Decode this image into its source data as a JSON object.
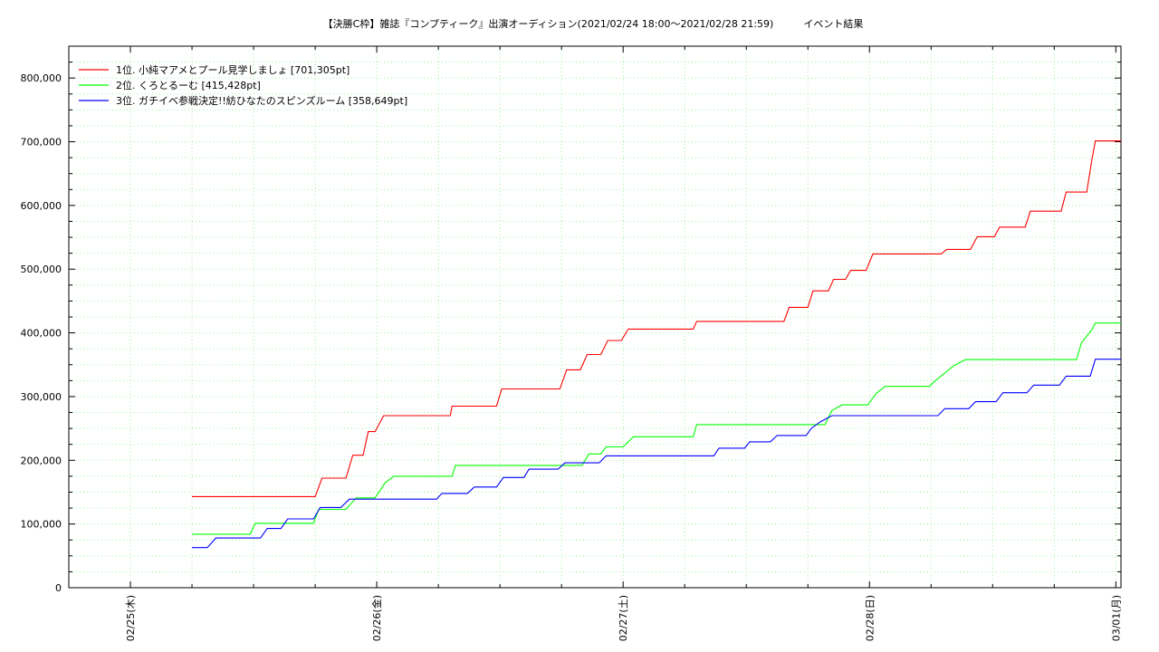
{
  "chart_data": {
    "type": "line",
    "title": "【決勝C枠】雑誌『コンプティーク』出演オーディション(2021/02/24 18:00〜2021/02/28 21:59)　　　イベント結果",
    "xlabel": "",
    "ylabel": "",
    "xlim": [
      "2021-02-24 18:00",
      "2021-03-01 00:30"
    ],
    "ylim": [
      0,
      850000
    ],
    "grid": true,
    "legend_position": "top-left",
    "x_tick_labels": [
      {
        "x": "2021-02-25 00:00",
        "label": "02/25(木)"
      },
      {
        "x": "2021-02-26 00:00",
        "label": "02/26(金)"
      },
      {
        "x": "2021-02-27 00:00",
        "label": "02/27(土)"
      },
      {
        "x": "2021-02-28 00:00",
        "label": "02/28(日)"
      },
      {
        "x": "2021-03-01 00:00",
        "label": "03/01(月)"
      }
    ],
    "y_tick_labels": [
      {
        "y": 0,
        "label": "0"
      },
      {
        "y": 100000,
        "label": "100,000"
      },
      {
        "y": 200000,
        "label": "200,000"
      },
      {
        "y": 300000,
        "label": "300,000"
      },
      {
        "y": 400000,
        "label": "400,000"
      },
      {
        "y": 500000,
        "label": "500,000"
      },
      {
        "y": 600000,
        "label": "600,000"
      },
      {
        "y": 700000,
        "label": "700,000"
      },
      {
        "y": 800000,
        "label": "800,000"
      }
    ],
    "series": [
      {
        "name": "1位. 小純マアメとプール見学しましょ [701,305pt]",
        "color": "#ff0000",
        "points": [
          [
            "2021-02-25 06:00",
            143000
          ],
          [
            "2021-02-25 18:00",
            143000
          ],
          [
            "2021-02-25 18:40",
            172000
          ],
          [
            "2021-02-25 21:00",
            172000
          ],
          [
            "2021-02-25 21:40",
            208000
          ],
          [
            "2021-02-25 22:40",
            208000
          ],
          [
            "2021-02-25 23:10",
            245000
          ],
          [
            "2021-02-25 23:50",
            245000
          ],
          [
            "2021-02-26 00:40",
            270000
          ],
          [
            "2021-02-26 03:00",
            270000
          ],
          [
            "2021-02-26 03:30",
            270000
          ],
          [
            "2021-02-26 03:40",
            270000
          ],
          [
            "2021-02-26 03:50",
            270000
          ],
          [
            "2021-02-26 02:50",
            270000
          ],
          [
            "2021-02-26 03:00",
            270000
          ],
          [
            "2021-02-26 03:10",
            270000
          ],
          [
            "2021-02-26 03:20",
            270000
          ],
          [
            "2021-02-26 03:30",
            270000
          ],
          [
            "2021-02-26 03:40",
            270000
          ],
          [
            "2021-02-26 03:50",
            270000
          ],
          [
            "2021-02-26 04:00",
            270000
          ],
          [
            "2021-02-26 04:10",
            270000
          ],
          [
            "2021-02-26 04:20",
            270000
          ],
          [
            "2021-02-26 04:30",
            270000
          ],
          [
            "2021-02-26 04:40",
            270000
          ],
          [
            "2021-02-26 04:50",
            270000
          ],
          [
            "2021-02-26 05:00",
            270000
          ],
          [
            "2021-02-26 05:10",
            270000
          ],
          [
            "2021-02-26 05:20",
            270000
          ],
          [
            "2021-02-26 05:30",
            270000
          ],
          [
            "2021-02-26 05:40",
            270000
          ],
          [
            "2021-02-26 05:50",
            270000
          ],
          [
            "2021-02-26 06:00",
            270000
          ],
          [
            "2021-02-26 06:10",
            270000
          ],
          [
            "2021-02-26 06:20",
            270000
          ],
          [
            "2021-02-26 06:30",
            270000
          ],
          [
            "2021-02-26 06:40",
            270000
          ],
          [
            "2021-02-26 06:50",
            270000
          ],
          [
            "2021-02-26 07:00",
            270000
          ],
          [
            "2021-02-26 07:10",
            270000
          ],
          [
            "2021-02-26 07:20",
            285000
          ],
          [
            "2021-02-26 11:40",
            285000
          ],
          [
            "2021-02-26 12:10",
            312000
          ],
          [
            "2021-02-26 17:50",
            312000
          ],
          [
            "2021-02-26 18:30",
            342000
          ],
          [
            "2021-02-26 19:50",
            342000
          ],
          [
            "2021-02-26 20:30",
            366000
          ],
          [
            "2021-02-26 21:50",
            366000
          ],
          [
            "2021-02-26 22:30",
            388000
          ],
          [
            "2021-02-26 23:50",
            388000
          ],
          [
            "2021-02-27 00:30",
            406000
          ],
          [
            "2021-02-27 06:50",
            406000
          ],
          [
            "2021-02-27 07:10",
            418000
          ],
          [
            "2021-02-27 15:40",
            418000
          ],
          [
            "2021-02-27 16:10",
            440000
          ],
          [
            "2021-02-27 18:00",
            440000
          ],
          [
            "2021-02-27 18:30",
            466000
          ],
          [
            "2021-02-27 20:00",
            466000
          ],
          [
            "2021-02-27 20:30",
            484000
          ],
          [
            "2021-02-27 21:40",
            484000
          ],
          [
            "2021-02-27 22:10",
            498000
          ],
          [
            "2021-02-27 23:40",
            498000
          ],
          [
            "2021-02-28 00:20",
            524000
          ],
          [
            "2021-02-28 07:00",
            524000
          ],
          [
            "2021-02-28 07:30",
            531000
          ],
          [
            "2021-02-28 09:50",
            531000
          ],
          [
            "2021-02-28 10:30",
            551000
          ],
          [
            "2021-02-28 12:10",
            551000
          ],
          [
            "2021-02-28 12:40",
            566000
          ],
          [
            "2021-02-28 15:10",
            566000
          ],
          [
            "2021-02-28 15:40",
            591000
          ],
          [
            "2021-02-28 18:40",
            591000
          ],
          [
            "2021-02-28 19:10",
            621000
          ],
          [
            "2021-02-28 21:10",
            621000
          ],
          [
            "2021-02-28 21:40",
            672000
          ],
          [
            "2021-02-28 22:00",
            701305
          ],
          [
            "2021-03-01 00:30",
            701305
          ]
        ]
      },
      {
        "name": "2位. くろとるーむ [415,428pt]",
        "color": "#00ff00",
        "points": [
          [
            "2021-02-25 06:00",
            84000
          ],
          [
            "2021-02-25 11:40",
            84000
          ],
          [
            "2021-02-25 12:10",
            101000
          ],
          [
            "2021-02-25 17:50",
            101000
          ],
          [
            "2021-02-25 18:20",
            123000
          ],
          [
            "2021-02-25 21:00",
            123000
          ],
          [
            "2021-02-25 22:00",
            141000
          ],
          [
            "2021-02-25 23:50",
            141000
          ],
          [
            "2021-02-26 00:50",
            165000
          ],
          [
            "2021-02-26 01:40",
            175000
          ],
          [
            "2021-02-26 07:20",
            175000
          ],
          [
            "2021-02-26 07:40",
            192000
          ],
          [
            "2021-02-26 20:00",
            192000
          ],
          [
            "2021-02-26 20:40",
            210000
          ],
          [
            "2021-02-26 21:50",
            210000
          ],
          [
            "2021-02-26 22:20",
            221000
          ],
          [
            "2021-02-27 00:00",
            221000
          ],
          [
            "2021-02-27 01:00",
            237000
          ],
          [
            "2021-02-27 06:50",
            237000
          ],
          [
            "2021-02-27 07:10",
            256000
          ],
          [
            "2021-02-27 19:40",
            256000
          ],
          [
            "2021-02-27 20:20",
            278000
          ],
          [
            "2021-02-27 21:20",
            287000
          ],
          [
            "2021-02-27 23:50",
            287000
          ],
          [
            "2021-02-28 00:40",
            305000
          ],
          [
            "2021-02-28 01:30",
            316000
          ],
          [
            "2021-02-28 05:50",
            316000
          ],
          [
            "2021-02-28 06:30",
            326000
          ],
          [
            "2021-02-28 07:20",
            337000
          ],
          [
            "2021-02-28 08:10",
            348000
          ],
          [
            "2021-02-28 09:20",
            358000
          ],
          [
            "2021-02-28 20:10",
            358000
          ],
          [
            "2021-02-28 20:40",
            385000
          ],
          [
            "2021-02-28 21:40",
            405000
          ],
          [
            "2021-02-28 22:00",
            415428
          ],
          [
            "2021-03-01 00:30",
            415428
          ]
        ]
      },
      {
        "name": "3位. ガチイベ参戦決定!!紡ひなたのスピンズルーム [358,649pt]",
        "color": "#0000ff",
        "points": [
          [
            "2021-02-25 06:00",
            63000
          ],
          [
            "2021-02-25 07:30",
            63000
          ],
          [
            "2021-02-25 08:20",
            78000
          ],
          [
            "2021-02-25 12:40",
            78000
          ],
          [
            "2021-02-25 13:20",
            93000
          ],
          [
            "2021-02-25 14:40",
            93000
          ],
          [
            "2021-02-25 15:20",
            108000
          ],
          [
            "2021-02-25 17:50",
            108000
          ],
          [
            "2021-02-25 18:30",
            126000
          ],
          [
            "2021-02-25 20:30",
            126000
          ],
          [
            "2021-02-25 21:20",
            139000
          ],
          [
            "2021-02-26 05:50",
            139000
          ],
          [
            "2021-02-26 06:20",
            148000
          ],
          [
            "2021-02-26 08:50",
            148000
          ],
          [
            "2021-02-26 09:30",
            158000
          ],
          [
            "2021-02-26 11:40",
            158000
          ],
          [
            "2021-02-26 12:20",
            173000
          ],
          [
            "2021-02-26 14:20",
            173000
          ],
          [
            "2021-02-26 14:50",
            186000
          ],
          [
            "2021-02-26 17:40",
            186000
          ],
          [
            "2021-02-26 18:20",
            196000
          ],
          [
            "2021-02-26 21:40",
            196000
          ],
          [
            "2021-02-26 22:20",
            207000
          ],
          [
            "2021-02-27 08:50",
            207000
          ],
          [
            "2021-02-27 09:20",
            219000
          ],
          [
            "2021-02-27 11:50",
            219000
          ],
          [
            "2021-02-27 12:20",
            229000
          ],
          [
            "2021-02-27 14:20",
            229000
          ],
          [
            "2021-02-27 15:00",
            239000
          ],
          [
            "2021-02-27 17:50",
            239000
          ],
          [
            "2021-02-27 18:20",
            250000
          ],
          [
            "2021-02-27 19:10",
            260000
          ],
          [
            "2021-02-27 20:20",
            270000
          ],
          [
            "2021-02-28 06:40",
            270000
          ],
          [
            "2021-02-28 07:20",
            281000
          ],
          [
            "2021-02-28 09:40",
            281000
          ],
          [
            "2021-02-28 10:20",
            292000
          ],
          [
            "2021-02-28 12:20",
            292000
          ],
          [
            "2021-02-28 13:00",
            306000
          ],
          [
            "2021-02-28 15:20",
            306000
          ],
          [
            "2021-02-28 16:00",
            318000
          ],
          [
            "2021-02-28 18:30",
            318000
          ],
          [
            "2021-02-28 19:10",
            332000
          ],
          [
            "2021-02-28 21:30",
            332000
          ],
          [
            "2021-02-28 22:00",
            358649
          ],
          [
            "2021-03-01 00:30",
            358649
          ]
        ]
      }
    ]
  }
}
